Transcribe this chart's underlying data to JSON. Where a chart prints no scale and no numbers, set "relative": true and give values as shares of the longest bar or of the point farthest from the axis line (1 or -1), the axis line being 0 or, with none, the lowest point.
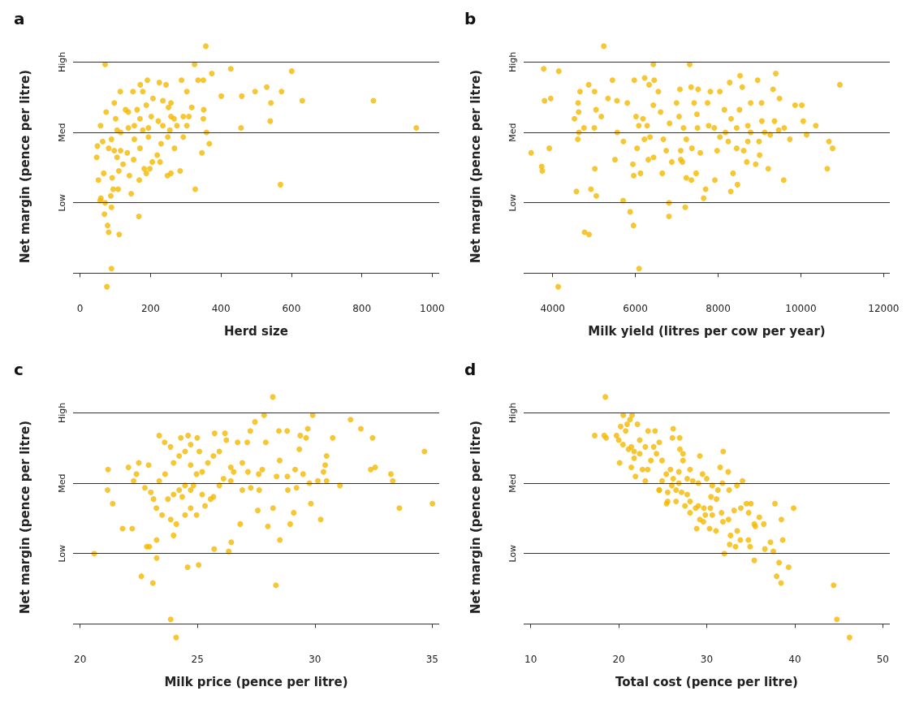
{
  "chart_data": [
    {
      "type": "scatter",
      "title": "a",
      "xlabel": "Herd size",
      "ylabel": "Net margin (pence per litre)",
      "color": "#f5b800",
      "marker": "circle",
      "relative": true,
      "xlim": [
        -20,
        1020
      ],
      "xticks": [
        0,
        200,
        400,
        600,
        800,
        1000
      ],
      "ref_lines": [
        {
          "axis": "y",
          "value": 0,
          "label": null
        },
        {
          "axis": "y",
          "value": 0.31,
          "label": "Low"
        },
        {
          "axis": "y",
          "value": 0.62,
          "label": "Med"
        },
        {
          "axis": "y",
          "value": 0.93,
          "label": "High"
        }
      ],
      "x": [
        71,
        357,
        325,
        428,
        601,
        833,
        955,
        631,
        572,
        497,
        530,
        459,
        401,
        542,
        540,
        457,
        569,
        327,
        346,
        367,
        359,
        374,
        350,
        335,
        288,
        303,
        351,
        350,
        317,
        293,
        303,
        284,
        258,
        248,
        268,
        230,
        225,
        244,
        191,
        171,
        150,
        114,
        97,
        74,
        58,
        49,
        47,
        52,
        67,
        59,
        57,
        71,
        69,
        78,
        81,
        111,
        89,
        167,
        89,
        76,
        145,
        94,
        108,
        87,
        91,
        110,
        168,
        182,
        198,
        188,
        140,
        152,
        122,
        205,
        227,
        219,
        249,
        258,
        258,
        235,
        207,
        188,
        170,
        154,
        137,
        115,
        105,
        89,
        81,
        64,
        154,
        178,
        194,
        170,
        115,
        101,
        137,
        162,
        202,
        222,
        194,
        178,
        129,
        105,
        134,
        97,
        267,
        275,
        293,
        235,
        255,
        251,
        309
      ],
      "values": [
        0.92,
        1,
        0.92,
        0.9,
        0.89,
        0.76,
        0.64,
        0.76,
        0.8,
        0.8,
        0.82,
        0.78,
        0.78,
        0.75,
        0.67,
        0.64,
        0.39,
        0.37,
        0.53,
        0.57,
        0.62,
        0.88,
        0.85,
        0.85,
        0.85,
        0.8,
        0.72,
        0.68,
        0.73,
        0.6,
        0.65,
        0.45,
        0.44,
        0.43,
        0.55,
        0.57,
        0.84,
        0.83,
        0.85,
        0.83,
        0.8,
        0.8,
        0.75,
        0.71,
        0.65,
        0.56,
        0.51,
        0.41,
        0.44,
        0.33,
        0.32,
        0.31,
        0.26,
        0.21,
        0.18,
        0.17,
        0.29,
        0.25,
        0.02,
        -0.06,
        0.35,
        0.37,
        0.37,
        0.34,
        0.42,
        0.45,
        0.41,
        0.46,
        0.46,
        0.44,
        0.43,
        0.5,
        0.48,
        0.49,
        0.49,
        0.52,
        0.6,
        0.69,
        0.75,
        0.76,
        0.77,
        0.74,
        0.68,
        0.65,
        0.64,
        0.62,
        0.63,
        0.59,
        0.55,
        0.58,
        0.59,
        0.63,
        0.6,
        0.55,
        0.54,
        0.68,
        0.71,
        0.72,
        0.69,
        0.67,
        0.64,
        0.8,
        0.72,
        0.51,
        0.53,
        0.54,
        0.68,
        0.65,
        0.69,
        0.65,
        0.63,
        0.73,
        0.69
      ]
    },
    {
      "type": "scatter",
      "title": "b",
      "xlabel": "Milk yield (litres per cow per year)",
      "ylabel": "Net margin (pence per litre)",
      "color": "#f5b800",
      "marker": "circle",
      "relative": true,
      "xlim": [
        3300,
        12150
      ],
      "xticks": [
        4000,
        6000,
        8000,
        10000,
        12000
      ],
      "ref_lines": [
        {
          "axis": "y",
          "value": 0,
          "label": null
        },
        {
          "axis": "y",
          "value": 0.31,
          "label": "Low"
        },
        {
          "axis": "y",
          "value": 0.62,
          "label": "Med"
        },
        {
          "axis": "y",
          "value": 0.93,
          "label": "High"
        }
      ],
      "x": [
        5237,
        3784,
        4149,
        6434,
        7312,
        9394,
        8529,
        10943,
        3804,
        3953,
        3479,
        3736,
        3750,
        3919,
        4575,
        4771,
        4879,
        4135,
        6089,
        5954,
        5873,
        5704,
        6812,
        6812,
        7204,
        7650,
        8306,
        8468,
        4926,
        5055,
        5021,
        10638,
        10679,
        10767,
        10361,
        10138,
        10057,
        10023,
        9861,
        9733,
        9584,
        9212,
        9003,
        8908,
        8692,
        8617,
        8360,
        7921,
        7698,
        7468,
        7353,
        7231,
        7137,
        6880,
        6650,
        6440,
        6312,
        6123,
        5960,
        5940,
        6042,
        5507,
        5710,
        5562,
        5007,
        4757,
        4608,
        4635,
        4527,
        4629,
        4615,
        4662,
        4872,
        5014,
        5048,
        5176,
        5338,
        5446,
        5555,
        5805,
        5974,
        6224,
        6454,
        6332,
        6555,
        6434,
        6609,
        6826,
        7056,
        6995,
        7076,
        7346,
        7515,
        7420,
        7488,
        7745,
        7813,
        8042,
        8279,
        8583,
        8955,
        9327,
        9483,
        9050,
        8786,
        8516,
        8151,
        8313,
        7907,
        7772,
        7502,
        7164,
        7231,
        7366,
        7096,
        7975,
        8245,
        8448,
        8718,
        8989,
        9259,
        9462,
        9597,
        9361,
        9057,
        8718,
        8448,
        8177,
        8042,
        8786,
        9124,
        6353,
        6218,
        6083,
        6285,
        6015,
        6184,
        6677,
        6745,
        7096,
        7569
      ],
      "values": [
        1,
        0.9,
        0.89,
        0.92,
        0.92,
        0.88,
        0.87,
        0.83,
        0.76,
        0.77,
        0.53,
        0.47,
        0.45,
        0.55,
        0.36,
        0.18,
        0.17,
        -0.06,
        0.02,
        0.21,
        0.27,
        0.32,
        0.31,
        0.25,
        0.29,
        0.33,
        0.36,
        0.39,
        0.37,
        0.34,
        0.46,
        0.46,
        0.58,
        0.55,
        0.65,
        0.61,
        0.67,
        0.74,
        0.74,
        0.59,
        0.41,
        0.46,
        0.52,
        0.48,
        0.49,
        0.54,
        0.44,
        0.41,
        0.37,
        0.44,
        0.41,
        0.42,
        0.49,
        0.49,
        0.44,
        0.51,
        0.5,
        0.44,
        0.43,
        0.48,
        0.55,
        0.5,
        0.58,
        0.62,
        0.64,
        0.64,
        0.59,
        0.62,
        0.68,
        0.71,
        0.75,
        0.8,
        0.83,
        0.8,
        0.72,
        0.69,
        0.77,
        0.85,
        0.76,
        0.75,
        0.85,
        0.86,
        0.85,
        0.83,
        0.8,
        0.74,
        0.71,
        0.66,
        0.69,
        0.75,
        0.81,
        0.82,
        0.81,
        0.75,
        0.7,
        0.75,
        0.8,
        0.8,
        0.84,
        0.82,
        0.85,
        0.81,
        0.77,
        0.75,
        0.75,
        0.72,
        0.72,
        0.68,
        0.64,
        0.65,
        0.64,
        0.64,
        0.59,
        0.55,
        0.54,
        0.54,
        0.58,
        0.55,
        0.58,
        0.58,
        0.61,
        0.63,
        0.64,
        0.67,
        0.67,
        0.65,
        0.64,
        0.62,
        0.6,
        0.62,
        0.62,
        0.6,
        0.59,
        0.65,
        0.65,
        0.69,
        0.68,
        0.59,
        0.54,
        0.5,
        0.53
      ]
    },
    {
      "type": "scatter",
      "title": "c",
      "xlabel": "Milk price (pence per litre)",
      "ylabel": "Net margin (pence per litre)",
      "color": "#f5b800",
      "marker": "circle",
      "relative": true,
      "xlim": [
        19.7,
        35.3
      ],
      "xticks": [
        20,
        25,
        30,
        35
      ],
      "ref_lines": [
        {
          "axis": "y",
          "value": 0,
          "label": null
        },
        {
          "axis": "y",
          "value": 0.31,
          "label": "Low"
        },
        {
          "axis": "y",
          "value": 0.62,
          "label": "Med"
        },
        {
          "axis": "y",
          "value": 0.93,
          "label": "High"
        }
      ],
      "x": [
        28.21,
        27.84,
        29.91,
        31.52,
        31.96,
        32.46,
        34.67,
        35.01,
        33.6,
        33.32,
        33.24,
        32.57,
        32.38,
        31.07,
        30.76,
        30.5,
        30.25,
        29.83,
        28.95,
        29.1,
        28.34,
        28.51,
        28.0,
        28.22,
        27.57,
        26.82,
        26.44,
        26.33,
        25.71,
        25.05,
        24.58,
        23.26,
        23.1,
        22.61,
        20.6,
        23.86,
        24.09,
        22.84,
        22.95,
        23.26,
        21.81,
        22.22,
        21.39,
        21.17,
        21.19,
        22.06,
        22.5,
        22.92,
        23.37,
        23.6,
        23.85,
        24.29,
        24.6,
        24.99,
        25.73,
        26.17,
        26.23,
        26.71,
        27.12,
        27.25,
        27.45,
        27.91,
        28.47,
        28.82,
        29.38,
        29.7,
        29.63,
        29.34,
        28.5,
        29.16,
        29.5,
        28.83,
        28.37,
        27.76,
        27.61,
        27.15,
        26.91,
        26.54,
        26.42,
        26.11,
        25.93,
        25.68,
        25.56,
        25.32,
        24.96,
        24.71,
        24.47,
        24.35,
        23.98,
        23.74,
        23.86,
        23.98,
        24.1,
        23.49,
        23.25,
        23.13,
        23.01,
        22.76,
        22.28,
        22.4,
        23.37,
        23.62,
        23.98,
        24.22,
        24.47,
        24.71,
        24.96,
        25.2,
        25.44,
        25.08,
        24.71,
        24.47,
        24.22,
        24.71,
        24.83,
        25.2,
        25.68,
        25.93,
        26.42,
        26.91,
        27.27,
        27.63,
        28.85,
        29.22,
        30.13,
        30.37,
        30.44,
        30.5,
        29.77
      ],
      "values": [
        1,
        0.92,
        0.92,
        0.9,
        0.86,
        0.82,
        0.76,
        0.53,
        0.51,
        0.63,
        0.66,
        0.69,
        0.68,
        0.61,
        0.82,
        0.74,
        0.46,
        0.53,
        0.44,
        0.49,
        0.17,
        0.37,
        0.43,
        0.51,
        0.5,
        0.44,
        0.36,
        0.32,
        0.33,
        0.26,
        0.25,
        0.29,
        0.18,
        0.21,
        0.31,
        0.02,
        -0.06,
        0.34,
        0.34,
        0.37,
        0.42,
        0.42,
        0.53,
        0.59,
        0.68,
        0.69,
        0.71,
        0.7,
        0.83,
        0.8,
        0.78,
        0.82,
        0.83,
        0.82,
        0.84,
        0.84,
        0.81,
        0.8,
        0.8,
        0.85,
        0.89,
        0.8,
        0.85,
        0.85,
        0.83,
        0.86,
        0.82,
        0.77,
        0.72,
        0.68,
        0.66,
        0.65,
        0.65,
        0.68,
        0.66,
        0.67,
        0.71,
        0.67,
        0.63,
        0.64,
        0.61,
        0.56,
        0.55,
        0.52,
        0.48,
        0.51,
        0.48,
        0.56,
        0.57,
        0.55,
        0.46,
        0.39,
        0.44,
        0.48,
        0.51,
        0.55,
        0.58,
        0.6,
        0.63,
        0.66,
        0.63,
        0.66,
        0.71,
        0.74,
        0.76,
        0.7,
        0.66,
        0.67,
        0.71,
        0.76,
        0.79,
        0.61,
        0.59,
        0.59,
        0.61,
        0.57,
        0.74,
        0.76,
        0.69,
        0.59,
        0.6,
        0.59,
        0.59,
        0.6,
        0.63,
        0.67,
        0.7,
        0.63,
        0.62
      ]
    },
    {
      "type": "scatter",
      "title": "d",
      "xlabel": "Total cost (pence per litre)",
      "ylabel": "Net margin (pence per litre)",
      "color": "#f5b800",
      "marker": "circle",
      "relative": true,
      "xlim": [
        9.2,
        50.8
      ],
      "xticks": [
        10,
        20,
        30,
        40,
        50
      ],
      "ref_lines": [
        {
          "axis": "y",
          "value": 0,
          "label": null
        },
        {
          "axis": "y",
          "value": 0.31,
          "label": "Low"
        },
        {
          "axis": "y",
          "value": 0.62,
          "label": "Med"
        },
        {
          "axis": "y",
          "value": 0.93,
          "label": "High"
        }
      ],
      "x": [
        18.48,
        17.27,
        18.35,
        18.57,
        20.51,
        21.52,
        21.27,
        22.13,
        20.22,
        20.95,
        20.79,
        19.75,
        20.1,
        20.0,
        20.48,
        21.11,
        21.75,
        22.38,
        21.43,
        21.9,
        22.7,
        23.02,
        23.33,
        24.13,
        26.19,
        26.92,
        26.1,
        26.95,
        27.3,
        27.3,
        29.21,
        31.87,
        31.52,
        32.44,
        34.06,
        33.43,
        32.54,
        31.78,
        31.11,
        30.48,
        37.75,
        39.87,
        38.48,
        38.63,
        37.24,
        37.56,
        36.6,
        34.92,
        34.73,
        35.4,
        38.22,
        39.3,
        37.94,
        38.44,
        44.41,
        44.79,
        46.22,
        32.0,
        32.6,
        33.27,
        33.81,
        32.7,
        33.46,
        33.87,
        34.51,
        35.02,
        34.76,
        35.97,
        36.48,
        35.4,
        35.52,
        33.11,
        32.48,
        31.84,
        31.68,
        31.05,
        30.32,
        28.86,
        29.62,
        29.21,
        29.84,
        30.63,
        30.41,
        29.68,
        29.05,
        28.1,
        27.52,
        28.73,
        28.1,
        27.78,
        27.14,
        26.51,
        26.83,
        26.03,
        25.56,
        24.6,
        24.92,
        25.4,
        25.87,
        26.19,
        26.83,
        27.78,
        28.41,
        29.05,
        30.0,
        30.63,
        31.27,
        29.52,
        28.1,
        23.29,
        23.65,
        24.29,
        24.92,
        23.97,
        24.6,
        23.02,
        22.38,
        21.43,
        21.75,
        25.43,
        26.51,
        24.6,
        25.56
      ],
      "values": [
        1,
        0.83,
        0.83,
        0.82,
        0.92,
        0.92,
        0.9,
        0.88,
        0.87,
        0.88,
        0.85,
        0.83,
        0.71,
        0.81,
        0.79,
        0.77,
        0.76,
        0.75,
        0.69,
        0.65,
        0.68,
        0.63,
        0.85,
        0.85,
        0.86,
        0.82,
        0.82,
        0.77,
        0.75,
        0.72,
        0.74,
        0.76,
        0.69,
        0.67,
        0.63,
        0.61,
        0.59,
        0.62,
        0.55,
        0.56,
        0.53,
        0.51,
        0.46,
        0.37,
        0.36,
        0.32,
        0.33,
        0.34,
        0.37,
        0.28,
        0.27,
        0.25,
        0.21,
        0.18,
        0.17,
        0.02,
        -0.06,
        0.31,
        0.35,
        0.34,
        0.37,
        0.39,
        0.41,
        0.51,
        0.53,
        0.53,
        0.49,
        0.47,
        0.44,
        0.44,
        0.43,
        0.5,
        0.46,
        0.45,
        0.49,
        0.41,
        0.42,
        0.42,
        0.45,
        0.46,
        0.48,
        0.48,
        0.51,
        0.51,
        0.52,
        0.49,
        0.52,
        0.51,
        0.54,
        0.57,
        0.58,
        0.59,
        0.62,
        0.61,
        0.58,
        0.59,
        0.63,
        0.66,
        0.68,
        0.64,
        0.67,
        0.64,
        0.63,
        0.62,
        0.64,
        0.61,
        0.59,
        0.66,
        0.68,
        0.68,
        0.72,
        0.75,
        0.72,
        0.78,
        0.8,
        0.78,
        0.81,
        0.78,
        0.73,
        0.53,
        0.54,
        0.59,
        0.54
      ]
    }
  ]
}
